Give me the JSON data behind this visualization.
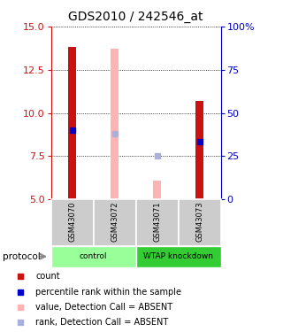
{
  "title": "GDS2010 / 242546_at",
  "samples": [
    "GSM43070",
    "GSM43072",
    "GSM43071",
    "GSM43073"
  ],
  "ylim_left": [
    5,
    15
  ],
  "ylim_right": [
    0,
    100
  ],
  "yticks_left": [
    5,
    7.5,
    10,
    12.5,
    15
  ],
  "yticks_right": [
    0,
    25,
    50,
    75,
    100
  ],
  "bar_values_present": [
    13.8,
    null,
    null,
    10.7
  ],
  "bar_color_present": "#cc1111",
  "bar_values_absent": [
    null,
    13.7,
    6.1,
    null
  ],
  "bar_color_absent": "#ffb3b3",
  "rank_present": [
    9.0,
    null,
    null,
    8.35
  ],
  "rank_absent": [
    null,
    8.8,
    7.5,
    null
  ],
  "rank_present_color": "#0000cc",
  "rank_absent_color": "#aab0dd",
  "bar_width": 0.18,
  "groups_info": [
    {
      "label": "control",
      "start": 0,
      "end": 2,
      "color": "#99ff99"
    },
    {
      "label": "WTAP knockdown",
      "start": 2,
      "end": 4,
      "color": "#33cc33"
    }
  ],
  "legend_items": [
    {
      "label": "count",
      "color": "#cc1111"
    },
    {
      "label": "percentile rank within the sample",
      "color": "#0000cc"
    },
    {
      "label": "value, Detection Call = ABSENT",
      "color": "#ffb3b3"
    },
    {
      "label": "rank, Detection Call = ABSENT",
      "color": "#aab0dd"
    }
  ],
  "left_axis_color": "#cc1111",
  "right_axis_color": "#0000bb",
  "title_fontsize": 10,
  "tick_fontsize": 8,
  "label_fontsize": 7
}
